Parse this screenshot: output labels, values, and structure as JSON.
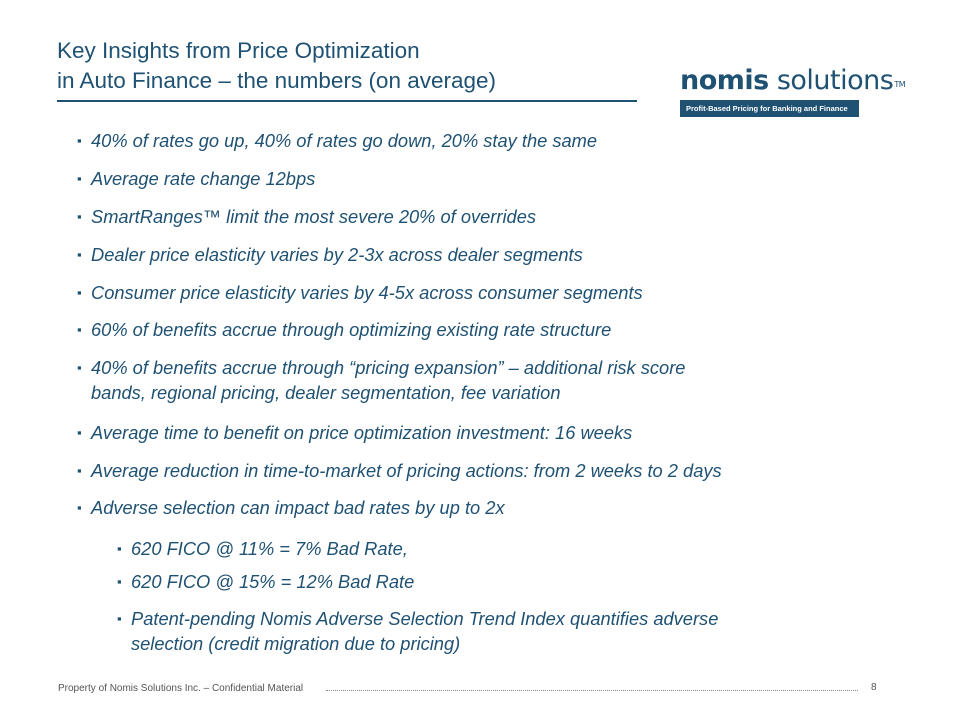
{
  "slide": {
    "title_line1": "Key Insights from Price Optimization",
    "title_line2": "in Auto Finance – the numbers (on average)"
  },
  "logo": {
    "word_regular": "nomis",
    "word_bold": " solutions",
    "trademark": "TM",
    "tagline": "Profit-Based Pricing for Banking and Finance"
  },
  "bullets": [
    "40% of rates go up, 40% of rates go down, 20% stay the same",
    "Average rate change 12bps",
    "SmartRanges™ limit the most severe 20% of overrides",
    "Dealer price elasticity varies by 2-3x across dealer segments",
    "Consumer price elasticity varies by 4-5x across consumer segments",
    "60% of benefits accrue through optimizing existing rate structure",
    {
      "line1": "40% of benefits accrue through “pricing expansion” – additional risk score",
      "line2": "bands, regional pricing, dealer segmentation, fee variation"
    },
    "Average time to benefit on price optimization investment: 16 weeks",
    "Average reduction in time-to-market of pricing actions: from 2 weeks to 2 days",
    "Adverse selection can impact bad rates by up to 2x"
  ],
  "sub_bullets": [
    "620 FICO @ 11% = 7% Bad Rate,",
    "620 FICO @ 15% = 12% Bad Rate",
    {
      "line1": "Patent-pending Nomis Adverse Selection Trend Index quantifies adverse",
      "line2": "selection (credit migration due to pricing)"
    }
  ],
  "bullet_marker": "▪",
  "footer": {
    "text": "Property of Nomis Solutions Inc. – Confidential Material",
    "page_number": "8"
  },
  "colors": {
    "primary": "#1f5173",
    "footer_text": "#555555"
  }
}
